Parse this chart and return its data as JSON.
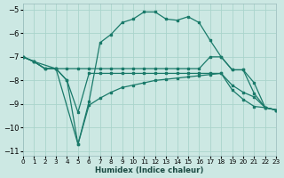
{
  "xlabel": "Humidex (Indice chaleur)",
  "bg_color": "#cce8e3",
  "grid_color": "#aad4cc",
  "line_color": "#1a7a6a",
  "xlim": [
    0,
    23
  ],
  "ylim": [
    -11.2,
    -4.75
  ],
  "yticks": [
    -11,
    -10,
    -9,
    -8,
    -7,
    -6,
    -5
  ],
  "xticks": [
    0,
    1,
    2,
    3,
    4,
    5,
    6,
    7,
    8,
    9,
    10,
    11,
    12,
    13,
    14,
    15,
    16,
    17,
    18,
    19,
    20,
    21,
    22,
    23
  ],
  "series": [
    {
      "x": [
        0,
        1,
        3,
        5,
        6,
        7,
        8,
        9,
        10,
        11,
        12,
        13,
        14,
        15,
        16,
        17,
        18,
        19,
        20,
        21,
        22,
        23
      ],
      "y": [
        -7.0,
        -7.2,
        -7.5,
        -10.7,
        -8.9,
        -6.4,
        -6.05,
        -5.55,
        -5.4,
        -5.1,
        -5.1,
        -5.4,
        -5.45,
        -5.3,
        -5.55,
        -6.3,
        -7.0,
        -7.55,
        -7.55,
        -8.55,
        -9.15,
        -9.25
      ]
    },
    {
      "x": [
        0,
        1,
        2,
        3,
        4,
        5,
        6,
        7,
        8,
        9,
        10,
        11,
        12,
        13,
        14,
        15,
        16,
        17,
        18,
        19,
        20,
        21,
        22,
        23
      ],
      "y": [
        -7.0,
        -7.2,
        -7.5,
        -7.5,
        -7.5,
        -7.5,
        -7.5,
        -7.5,
        -7.5,
        -7.5,
        -7.5,
        -7.5,
        -7.5,
        -7.5,
        -7.5,
        -7.5,
        -7.5,
        -7.0,
        -7.0,
        -7.55,
        -7.55,
        -8.1,
        -9.15,
        -9.25
      ]
    },
    {
      "x": [
        0,
        1,
        2,
        3,
        4,
        5,
        6,
        7,
        8,
        9,
        10,
        11,
        12,
        13,
        14,
        15,
        16,
        17,
        18,
        19,
        20,
        21,
        22,
        23
      ],
      "y": [
        -7.0,
        -7.2,
        -7.5,
        -7.5,
        -8.0,
        -9.35,
        -7.7,
        -7.7,
        -7.7,
        -7.7,
        -7.7,
        -7.7,
        -7.7,
        -7.7,
        -7.7,
        -7.7,
        -7.7,
        -7.7,
        -7.7,
        -8.2,
        -8.5,
        -8.7,
        -9.15,
        -9.25
      ]
    },
    {
      "x": [
        0,
        1,
        2,
        3,
        4,
        5,
        6,
        7,
        8,
        9,
        10,
        11,
        12,
        13,
        14,
        15,
        16,
        17,
        18,
        19,
        20,
        21,
        22,
        23
      ],
      "y": [
        -7.0,
        -7.2,
        -7.5,
        -7.5,
        -8.0,
        -10.7,
        -9.05,
        -8.75,
        -8.5,
        -8.3,
        -8.2,
        -8.1,
        -8.0,
        -7.95,
        -7.9,
        -7.85,
        -7.8,
        -7.75,
        -7.7,
        -8.4,
        -8.8,
        -9.1,
        -9.15,
        -9.25
      ]
    }
  ]
}
